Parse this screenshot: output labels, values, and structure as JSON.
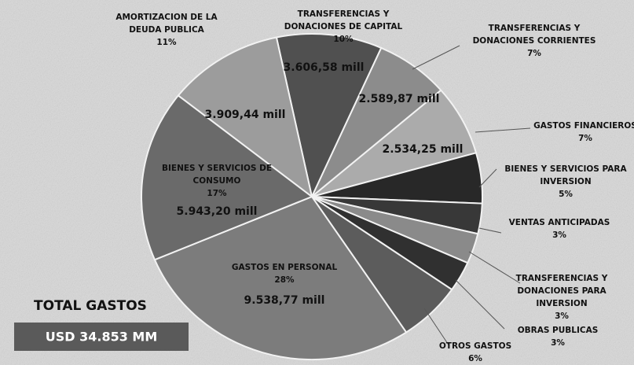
{
  "chart_data": {
    "type": "pie",
    "categories": [
      [
        "TRANSFERENCIAS Y",
        "DONACIONES DE CAPITAL"
      ],
      [
        "TRANSFERENCIAS Y",
        "DONACIONES CORRIENTES"
      ],
      [
        "GASTOS FINANCIEROS"
      ],
      [
        "BIENES Y SERVICIOS PARA",
        "INVERSION"
      ],
      [
        "VENTAS ANTICIPADAS"
      ],
      [
        "TRANSFERENCIAS Y",
        "DONACIONES PARA",
        "INVERSION"
      ],
      [
        "OBRAS PUBLICAS"
      ],
      [
        "OTROS GASTOS"
      ],
      [
        "GASTOS EN PERSONAL"
      ],
      [
        "BIENES Y SERVICIOS DE",
        "CONSUMO"
      ],
      [
        "AMORTIZACION DE LA",
        "DEUDA PUBLICA"
      ]
    ],
    "values": [
      10,
      7,
      7,
      5,
      3,
      3,
      3,
      6,
      28,
      17,
      11
    ],
    "value_labels": [
      "10%",
      "7%",
      "7%",
      "5%",
      "3%",
      "3%",
      "3%",
      "6%",
      "28%",
      "17%",
      "11%"
    ],
    "amount_labels": [
      "3.606,58 mill",
      "2.589,87 mill",
      "2.534,25 mill",
      null,
      null,
      null,
      null,
      null,
      "9.538,77 mill",
      "5.943,20 mill",
      "3.909,44 mill"
    ],
    "colors": [
      "#505050",
      "#8c8c8c",
      "#ababab",
      "#282828",
      "#383838",
      "#8a8a8a",
      "#303030",
      "#5c5c5c",
      "#7c7c7c",
      "#6a6a6a",
      "#9c9c9c"
    ],
    "annotations": [
      "TOTAL GASTOS",
      "USD 34.853 MM"
    ]
  }
}
